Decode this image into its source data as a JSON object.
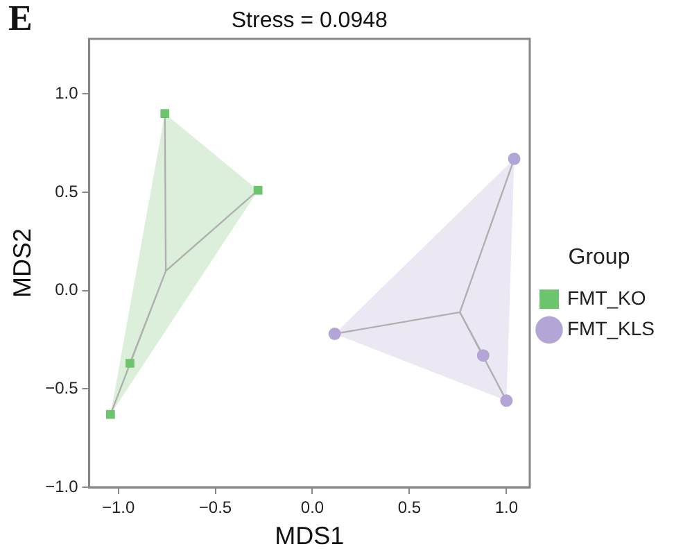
{
  "chart_data": {
    "type": "scatter",
    "title": "Stress = 0.0948",
    "xlabel": "MDS1",
    "ylabel": "MDS2",
    "legend_title": "Group",
    "annotations": [
      "E"
    ],
    "series": [
      {
        "type": "area",
        "color": "#dcefdb",
        "x": [
          -0.76,
          -0.28,
          -1.04,
          -0.76
        ],
        "values": [
          0.9,
          0.51,
          -0.63,
          0.9
        ]
      },
      {
        "type": "area",
        "color": "#ebe7f3",
        "x": [
          1.04,
          1.0,
          0.115,
          1.04
        ],
        "values": [
          0.67,
          -0.56,
          -0.22,
          0.67
        ]
      },
      {
        "type": "line",
        "color": "#b0b0b0",
        "x": [
          -0.755,
          -0.76,
          null,
          -0.755,
          -0.28,
          null,
          -0.755,
          -0.94,
          null,
          -0.755,
          -1.04
        ],
        "values": [
          0.1,
          0.9,
          null,
          0.1,
          0.51,
          null,
          0.1,
          -0.37,
          null,
          0.1,
          -0.63
        ]
      },
      {
        "type": "line",
        "color": "#b0b0b0",
        "x": [
          0.76,
          1.04,
          null,
          0.76,
          0.115,
          null,
          0.76,
          0.88,
          null,
          0.76,
          1.0
        ],
        "values": [
          -0.11,
          0.67,
          null,
          -0.11,
          -0.22,
          null,
          -0.11,
          -0.33,
          null,
          -0.11,
          -0.56
        ]
      },
      {
        "name": "FMT_KO",
        "color": "#6cc46c",
        "marker": "square",
        "x": [
          -0.76,
          -0.28,
          -0.94,
          -1.04
        ],
        "values": [
          0.9,
          0.51,
          -0.37,
          -0.63
        ]
      },
      {
        "name": "FMT_KLS",
        "color": "#b3a6d6",
        "marker": "circle",
        "x": [
          1.04,
          0.115,
          0.88,
          1.0
        ],
        "values": [
          0.67,
          -0.22,
          -0.33,
          -0.56
        ]
      }
    ],
    "xlim": [
      -1.15,
      1.12
    ],
    "ylim": [
      -1.0,
      1.28
    ],
    "xticks": [
      {
        "value": -1,
        "label": "−1.0"
      },
      {
        "value": -0.5,
        "label": "−0.5"
      },
      {
        "value": 0,
        "label": "0.0"
      },
      {
        "value": 0.5,
        "label": "0.5"
      },
      {
        "value": 1,
        "label": "1.0"
      }
    ],
    "yticks": [
      {
        "value": -1,
        "label": "−1.0"
      },
      {
        "value": -0.5,
        "label": "−0.5"
      },
      {
        "value": 0,
        "label": "0.0"
      },
      {
        "value": 0.5,
        "label": "0.5"
      },
      {
        "value": 1,
        "label": "1.0"
      }
    ],
    "grid": false,
    "legend": "right"
  }
}
